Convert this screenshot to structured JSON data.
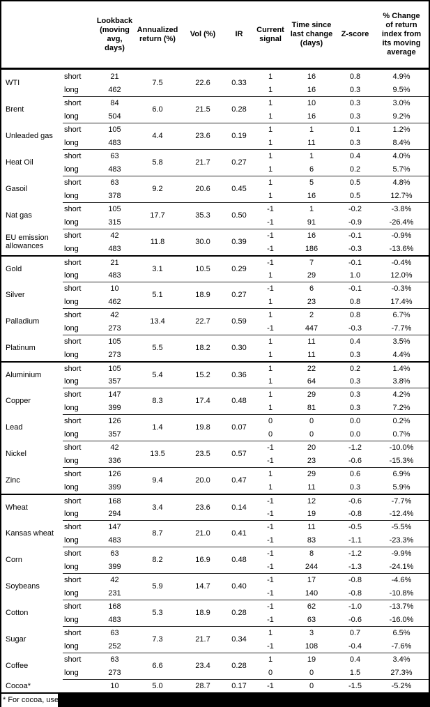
{
  "header": {
    "columns": {
      "lookback": "Lookback (moving avg, days)",
      "annualized": "Annualized return (%)",
      "vol": "Vol (%)",
      "ir": "IR",
      "signal": "Current signal",
      "time": "Time since last change (days)",
      "zscore": "Z-score",
      "pct": "% Change of return index from its moving average"
    }
  },
  "commodities": [
    {
      "name": "WTI",
      "group_start": false,
      "annualized": "7.5",
      "vol": "22.6",
      "ir": "0.33",
      "rows": [
        {
          "horizon": "short",
          "lookback": "21",
          "signal": "1",
          "time": "16",
          "zscore": "0.8",
          "pct": "4.9%"
        },
        {
          "horizon": "long",
          "lookback": "462",
          "signal": "1",
          "time": "16",
          "zscore": "0.3",
          "pct": "9.5%"
        }
      ]
    },
    {
      "name": "Brent",
      "group_start": false,
      "annualized": "6.0",
      "vol": "21.5",
      "ir": "0.28",
      "rows": [
        {
          "horizon": "short",
          "lookback": "84",
          "signal": "1",
          "time": "10",
          "zscore": "0.3",
          "pct": "3.0%"
        },
        {
          "horizon": "long",
          "lookback": "504",
          "signal": "1",
          "time": "16",
          "zscore": "0.3",
          "pct": "9.2%"
        }
      ]
    },
    {
      "name": "Unleaded gas",
      "group_start": false,
      "annualized": "4.4",
      "vol": "23.6",
      "ir": "0.19",
      "rows": [
        {
          "horizon": "short",
          "lookback": "105",
          "signal": "1",
          "time": "1",
          "zscore": "0.1",
          "pct": "1.2%"
        },
        {
          "horizon": "long",
          "lookback": "483",
          "signal": "1",
          "time": "11",
          "zscore": "0.3",
          "pct": "8.4%"
        }
      ]
    },
    {
      "name": "Heat Oil",
      "group_start": false,
      "annualized": "5.8",
      "vol": "21.7",
      "ir": "0.27",
      "rows": [
        {
          "horizon": "short",
          "lookback": "63",
          "signal": "1",
          "time": "1",
          "zscore": "0.4",
          "pct": "4.0%"
        },
        {
          "horizon": "long",
          "lookback": "483",
          "signal": "1",
          "time": "6",
          "zscore": "0.2",
          "pct": "5.7%"
        }
      ]
    },
    {
      "name": "Gasoil",
      "group_start": false,
      "annualized": "9.2",
      "vol": "20.6",
      "ir": "0.45",
      "rows": [
        {
          "horizon": "short",
          "lookback": "63",
          "signal": "1",
          "time": "5",
          "zscore": "0.5",
          "pct": "4.8%"
        },
        {
          "horizon": "long",
          "lookback": "378",
          "signal": "1",
          "time": "16",
          "zscore": "0.5",
          "pct": "12.7%"
        }
      ]
    },
    {
      "name": "Nat gas",
      "group_start": false,
      "annualized": "17.7",
      "vol": "35.3",
      "ir": "0.50",
      "rows": [
        {
          "horizon": "short",
          "lookback": "105",
          "signal": "-1",
          "time": "1",
          "zscore": "-0.2",
          "pct": "-3.8%"
        },
        {
          "horizon": "long",
          "lookback": "315",
          "signal": "-1",
          "time": "91",
          "zscore": "-0.9",
          "pct": "-26.4%"
        }
      ]
    },
    {
      "name": "EU emission allowances",
      "group_start": false,
      "annualized": "11.8",
      "vol": "30.0",
      "ir": "0.39",
      "rows": [
        {
          "horizon": "short",
          "lookback": "42",
          "signal": "-1",
          "time": "16",
          "zscore": "-0.1",
          "pct": "-0.9%"
        },
        {
          "horizon": "long",
          "lookback": "483",
          "signal": "-1",
          "time": "186",
          "zscore": "-0.3",
          "pct": "-13.6%"
        }
      ]
    },
    {
      "name": "Gold",
      "group_start": true,
      "annualized": "3.1",
      "vol": "10.5",
      "ir": "0.29",
      "rows": [
        {
          "horizon": "short",
          "lookback": "21",
          "signal": "-1",
          "time": "7",
          "zscore": "-0.1",
          "pct": "-0.4%"
        },
        {
          "horizon": "long",
          "lookback": "483",
          "signal": "1",
          "time": "29",
          "zscore": "1.0",
          "pct": "12.0%"
        }
      ]
    },
    {
      "name": "Silver",
      "group_start": false,
      "annualized": "5.1",
      "vol": "18.9",
      "ir": "0.27",
      "rows": [
        {
          "horizon": "short",
          "lookback": "10",
          "signal": "-1",
          "time": "6",
          "zscore": "-0.1",
          "pct": "-0.3%"
        },
        {
          "horizon": "long",
          "lookback": "462",
          "signal": "1",
          "time": "23",
          "zscore": "0.8",
          "pct": "17.4%"
        }
      ]
    },
    {
      "name": "Palladium",
      "group_start": false,
      "annualized": "13.4",
      "vol": "22.7",
      "ir": "0.59",
      "rows": [
        {
          "horizon": "short",
          "lookback": "42",
          "signal": "1",
          "time": "2",
          "zscore": "0.8",
          "pct": "6.7%"
        },
        {
          "horizon": "long",
          "lookback": "273",
          "signal": "-1",
          "time": "447",
          "zscore": "-0.3",
          "pct": "-7.7%"
        }
      ]
    },
    {
      "name": "Platinum",
      "group_start": false,
      "annualized": "5.5",
      "vol": "18.2",
      "ir": "0.30",
      "rows": [
        {
          "horizon": "short",
          "lookback": "105",
          "signal": "1",
          "time": "11",
          "zscore": "0.4",
          "pct": "3.5%"
        },
        {
          "horizon": "long",
          "lookback": "273",
          "signal": "1",
          "time": "11",
          "zscore": "0.3",
          "pct": "4.4%"
        }
      ]
    },
    {
      "name": "Aluminium",
      "group_start": true,
      "annualized": "5.4",
      "vol": "15.2",
      "ir": "0.36",
      "rows": [
        {
          "horizon": "short",
          "lookback": "105",
          "signal": "1",
          "time": "22",
          "zscore": "0.2",
          "pct": "1.4%"
        },
        {
          "horizon": "long",
          "lookback": "357",
          "signal": "1",
          "time": "64",
          "zscore": "0.3",
          "pct": "3.8%"
        }
      ]
    },
    {
      "name": "Copper",
      "group_start": false,
      "annualized": "8.3",
      "vol": "17.4",
      "ir": "0.48",
      "rows": [
        {
          "horizon": "short",
          "lookback": "147",
          "signal": "1",
          "time": "29",
          "zscore": "0.3",
          "pct": "4.2%"
        },
        {
          "horizon": "long",
          "lookback": "399",
          "signal": "1",
          "time": "81",
          "zscore": "0.3",
          "pct": "7.2%"
        }
      ]
    },
    {
      "name": "Lead",
      "group_start": false,
      "annualized": "1.4",
      "vol": "19.8",
      "ir": "0.07",
      "rows": [
        {
          "horizon": "short",
          "lookback": "126",
          "signal": "0",
          "time": "0",
          "zscore": "0.0",
          "pct": "0.2%"
        },
        {
          "horizon": "long",
          "lookback": "357",
          "signal": "0",
          "time": "0",
          "zscore": "0.0",
          "pct": "0.7%"
        }
      ]
    },
    {
      "name": "Nickel",
      "group_start": false,
      "annualized": "13.5",
      "vol": "23.5",
      "ir": "0.57",
      "rows": [
        {
          "horizon": "short",
          "lookback": "42",
          "signal": "-1",
          "time": "20",
          "zscore": "-1.2",
          "pct": "-10.0%"
        },
        {
          "horizon": "long",
          "lookback": "336",
          "signal": "-1",
          "time": "23",
          "zscore": "-0.6",
          "pct": "-15.3%"
        }
      ]
    },
    {
      "name": "Zinc",
      "group_start": false,
      "annualized": "9.4",
      "vol": "20.0",
      "ir": "0.47",
      "rows": [
        {
          "horizon": "short",
          "lookback": "126",
          "signal": "1",
          "time": "29",
          "zscore": "0.6",
          "pct": "6.9%"
        },
        {
          "horizon": "long",
          "lookback": "399",
          "signal": "1",
          "time": "11",
          "zscore": "0.3",
          "pct": "5.9%"
        }
      ]
    },
    {
      "name": "Wheat",
      "group_start": true,
      "annualized": "3.4",
      "vol": "23.6",
      "ir": "0.14",
      "rows": [
        {
          "horizon": "short",
          "lookback": "168",
          "signal": "-1",
          "time": "12",
          "zscore": "-0.6",
          "pct": "-7.7%"
        },
        {
          "horizon": "long",
          "lookback": "294",
          "signal": "-1",
          "time": "19",
          "zscore": "-0.8",
          "pct": "-12.4%"
        }
      ]
    },
    {
      "name": "Kansas wheat",
      "group_start": false,
      "annualized": "8.7",
      "vol": "21.0",
      "ir": "0.41",
      "rows": [
        {
          "horizon": "short",
          "lookback": "147",
          "signal": "-1",
          "time": "11",
          "zscore": "-0.5",
          "pct": "-5.5%"
        },
        {
          "horizon": "long",
          "lookback": "483",
          "signal": "-1",
          "time": "83",
          "zscore": "-1.1",
          "pct": "-23.3%"
        }
      ]
    },
    {
      "name": "Corn",
      "group_start": false,
      "annualized": "8.2",
      "vol": "16.9",
      "ir": "0.48",
      "rows": [
        {
          "horizon": "short",
          "lookback": "63",
          "signal": "-1",
          "time": "8",
          "zscore": "-1.2",
          "pct": "-9.9%"
        },
        {
          "horizon": "long",
          "lookback": "399",
          "signal": "-1",
          "time": "244",
          "zscore": "-1.3",
          "pct": "-24.1%"
        }
      ]
    },
    {
      "name": "Soybeans",
      "group_start": false,
      "annualized": "5.9",
      "vol": "14.7",
      "ir": "0.40",
      "rows": [
        {
          "horizon": "short",
          "lookback": "42",
          "signal": "-1",
          "time": "17",
          "zscore": "-0.8",
          "pct": "-4.6%"
        },
        {
          "horizon": "long",
          "lookback": "231",
          "signal": "-1",
          "time": "140",
          "zscore": "-0.8",
          "pct": "-10.8%"
        }
      ]
    },
    {
      "name": "Cotton",
      "group_start": false,
      "annualized": "5.3",
      "vol": "18.9",
      "ir": "0.28",
      "rows": [
        {
          "horizon": "short",
          "lookback": "168",
          "signal": "-1",
          "time": "62",
          "zscore": "-1.0",
          "pct": "-13.7%"
        },
        {
          "horizon": "long",
          "lookback": "483",
          "signal": "-1",
          "time": "63",
          "zscore": "-0.6",
          "pct": "-16.0%"
        }
      ]
    },
    {
      "name": "Sugar",
      "group_start": false,
      "annualized": "7.3",
      "vol": "21.7",
      "ir": "0.34",
      "rows": [
        {
          "horizon": "short",
          "lookback": "63",
          "signal": "1",
          "time": "3",
          "zscore": "0.7",
          "pct": "6.5%"
        },
        {
          "horizon": "long",
          "lookback": "252",
          "signal": "-1",
          "time": "108",
          "zscore": "-0.4",
          "pct": "-7.6%"
        }
      ]
    },
    {
      "name": "Coffee",
      "group_start": false,
      "annualized": "6.6",
      "vol": "23.4",
      "ir": "0.28",
      "rows": [
        {
          "horizon": "short",
          "lookback": "63",
          "signal": "1",
          "time": "19",
          "zscore": "0.4",
          "pct": "3.4%"
        },
        {
          "horizon": "long",
          "lookback": "273",
          "signal": "0",
          "time": "0",
          "zscore": "1.5",
          "pct": "27.3%"
        }
      ]
    },
    {
      "name": "Cocoa*",
      "group_start": false,
      "annualized": "5.0",
      "vol": "28.7",
      "ir": "0.17",
      "rows": [
        {
          "horizon": "",
          "lookback": "10",
          "signal": "-1",
          "time": "0",
          "zscore": "-1.5",
          "pct": "-5.2%"
        }
      ]
    }
  ],
  "footnote": "* For cocoa, uses c",
  "colors": {
    "text": "#000000",
    "background": "#ffffff",
    "line_thick": "#000000",
    "line_thin": "#2e2e2e",
    "redaction": "#000000"
  }
}
